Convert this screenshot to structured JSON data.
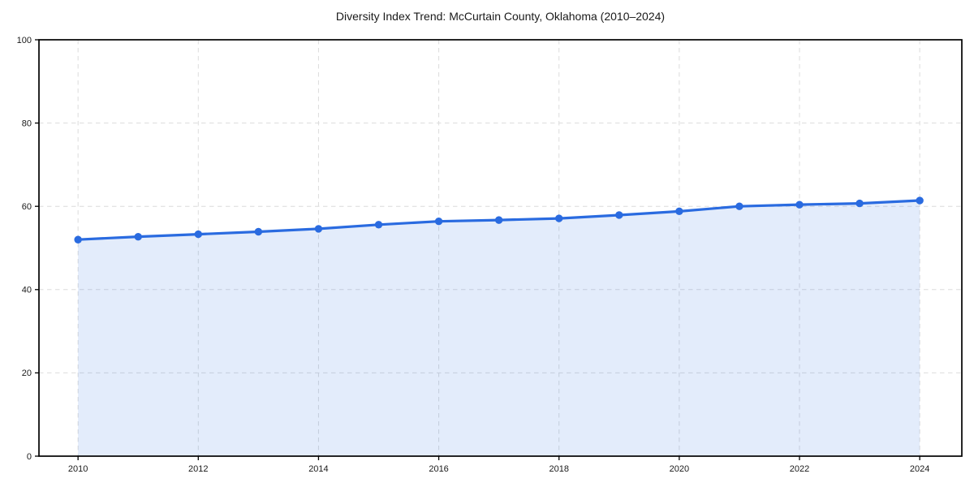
{
  "page": {
    "background": "#ffffff"
  },
  "chart_data": {
    "type": "area",
    "title": "Diversity Index Trend: McCurtain County, Oklahoma (2010–2024)",
    "xlabel": "",
    "ylabel": "",
    "x": [
      2010,
      2011,
      2012,
      2013,
      2014,
      2015,
      2016,
      2017,
      2018,
      2019,
      2020,
      2021,
      2022,
      2023,
      2024
    ],
    "series": [
      {
        "name": "Diversity Index",
        "values": [
          52.0,
          52.7,
          53.3,
          53.9,
          54.6,
          55.6,
          56.4,
          56.7,
          57.1,
          57.9,
          58.8,
          60.0,
          60.4,
          60.7,
          61.4
        ]
      }
    ],
    "xlim": [
      2009.35,
      2024.7
    ],
    "ylim": [
      0,
      100
    ],
    "xticks": [
      2010,
      2012,
      2014,
      2016,
      2018,
      2020,
      2022,
      2024
    ],
    "yticks": [
      0,
      20,
      40,
      60,
      80,
      100
    ],
    "grid": true,
    "grid_style": "dashed",
    "legend": "none",
    "marker": "circle",
    "colors": {
      "line": "#2a6be0",
      "marker": "#2a6be0",
      "fill": "rgba(42, 107, 224, 0.13)",
      "grid": "#dcdcdc",
      "axis": "#000000",
      "text": "#1a1a1a",
      "background": "#ffffff"
    }
  }
}
